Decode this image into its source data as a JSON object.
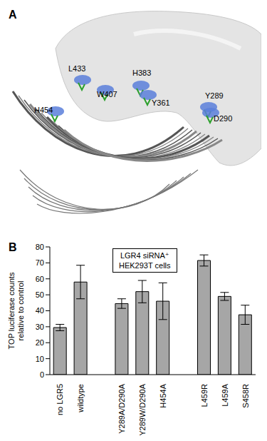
{
  "panel_labels": [
    "A",
    "B"
  ],
  "structure_labels": [
    "L433",
    "H454",
    "W407",
    "H383",
    "Y361",
    "Y289",
    "D290"
  ],
  "chart_data": {
    "type": "bar",
    "categories": [
      "no LGR5",
      "wildtype",
      null,
      "Y289A/D290A",
      "Y289W/D290A",
      "H454A",
      null,
      "L459R",
      "L459A",
      "S458R"
    ],
    "values": [
      29.5,
      58,
      null,
      44.5,
      52,
      46,
      null,
      71.5,
      49,
      37.5
    ],
    "errors": [
      2,
      10.5,
      null,
      3,
      7,
      11.5,
      null,
      3.5,
      2.5,
      6
    ],
    "color": "#a6a6a6",
    "ylabel": "TOP luciferase counts relative to control",
    "annotation": [
      "LGR4 siRNA⁺",
      "HEK293T cells"
    ],
    "ylim": [
      0,
      80
    ],
    "yticks": [
      0,
      10,
      20,
      30,
      40,
      50,
      60,
      70,
      80
    ],
    "grid": false
  }
}
